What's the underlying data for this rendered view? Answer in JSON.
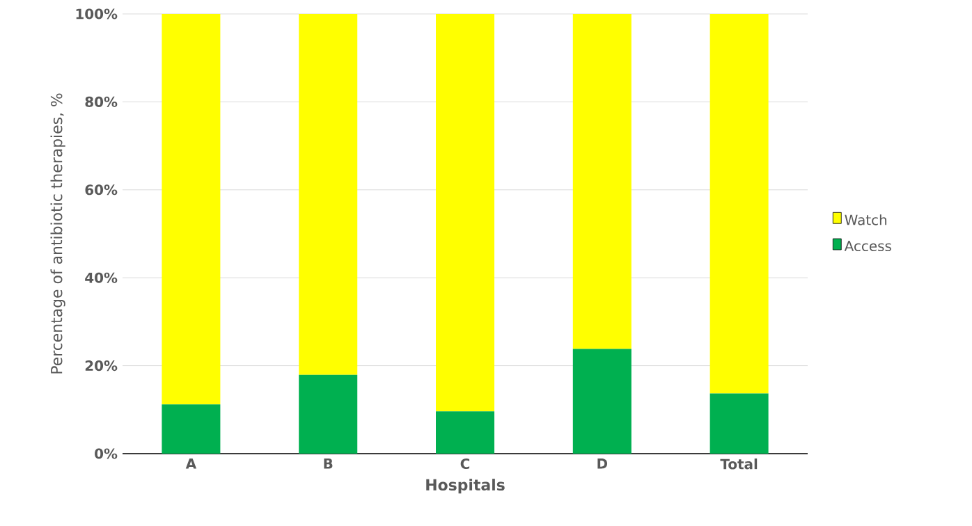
{
  "chart_data": {
    "type": "bar",
    "stacked": true,
    "xlabel": "Hospitals",
    "ylabel": "Percentage of antibiotic therapies, %",
    "categories": [
      "A",
      "B",
      "C",
      "D",
      "Total"
    ],
    "series": [
      {
        "name": "Access",
        "color": "#00b050",
        "values": [
          11.2,
          17.9,
          9.6,
          23.8,
          13.7
        ]
      },
      {
        "name": "Watch",
        "color": "#ffff00",
        "values": [
          88.8,
          82.1,
          90.4,
          76.2,
          86.3
        ]
      }
    ],
    "ylim": [
      0,
      100
    ],
    "yticks": [
      {
        "value": 0,
        "label": "0%"
      },
      {
        "value": 20,
        "label": "20%"
      },
      {
        "value": 40,
        "label": "40%"
      },
      {
        "value": 60,
        "label": "60%"
      },
      {
        "value": 80,
        "label": "80%"
      },
      {
        "value": 100,
        "label": "100%"
      }
    ],
    "grid": "y",
    "legend": "right"
  }
}
